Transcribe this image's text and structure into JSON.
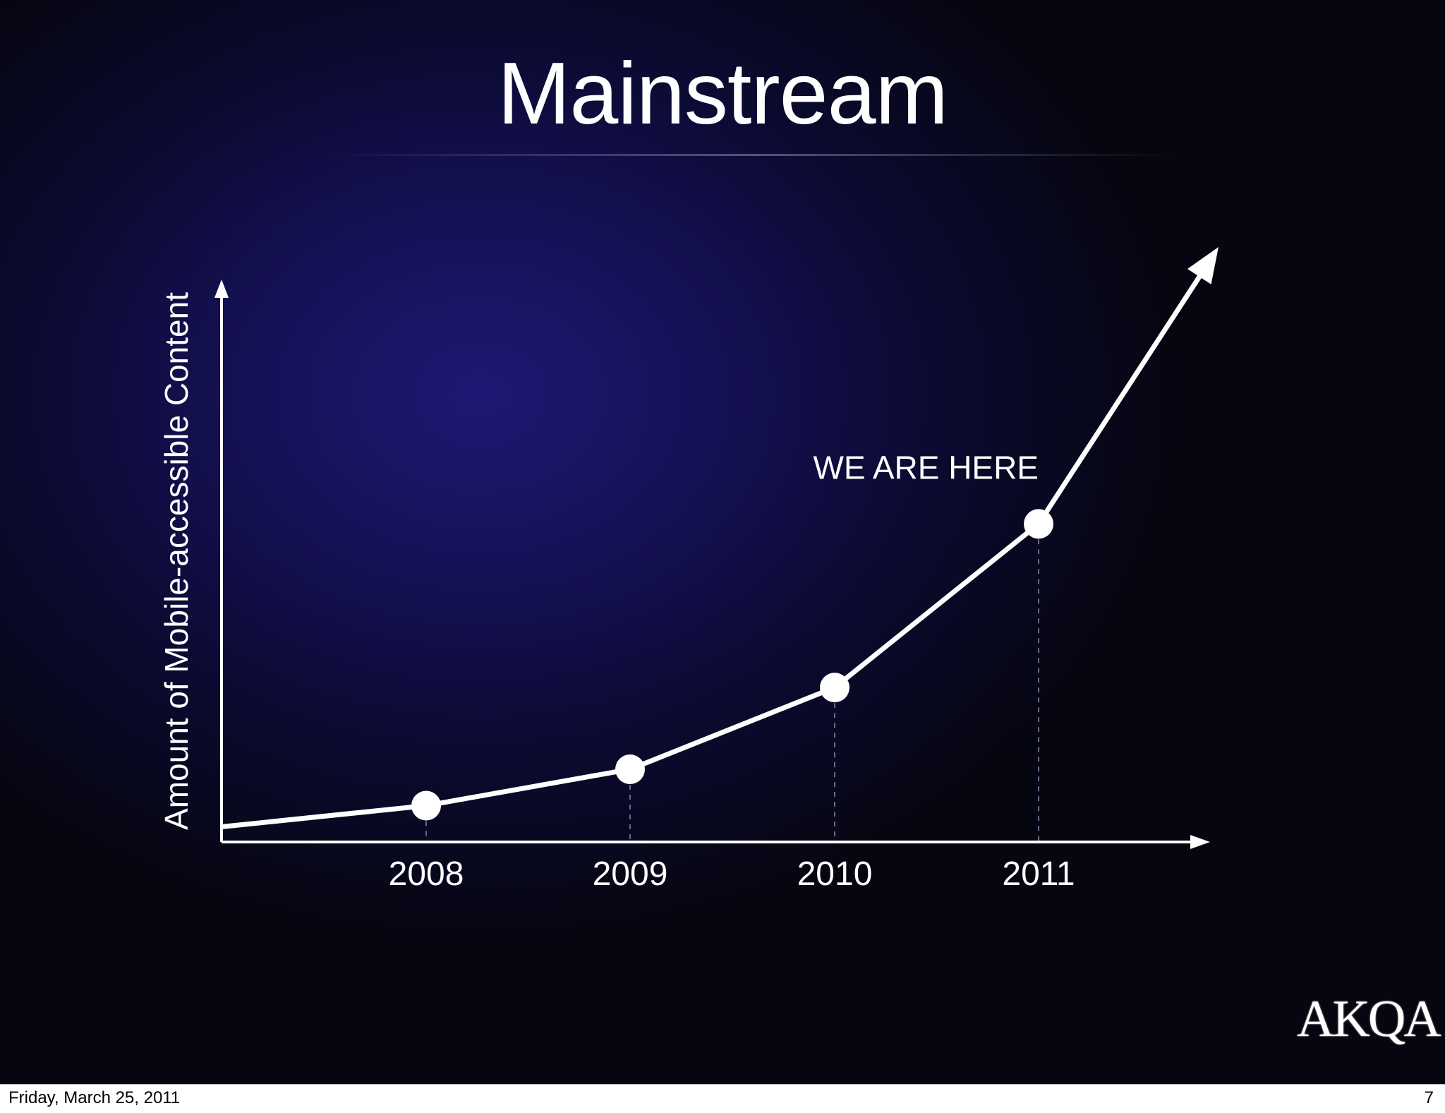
{
  "slide": {
    "title": "Mainstream",
    "logo_text": "AKQA"
  },
  "footer": {
    "date": "Friday, March 25, 2011",
    "page_number": "7"
  },
  "colors": {
    "background": "#161259",
    "line": "#ffffff"
  },
  "chart_data": {
    "type": "line",
    "ylabel": "Amount of Mobile-accessible Content",
    "xlabel": "",
    "x": [
      "2008",
      "2009",
      "2010",
      "2011"
    ],
    "series": [
      {
        "values": [
          8,
          16,
          34,
          70
        ],
        "trend_arrow": true
      }
    ],
    "ylim": [
      0,
      130
    ],
    "grid": false,
    "annotations": [
      {
        "x": "2011",
        "text": "WE ARE HERE"
      }
    ]
  }
}
